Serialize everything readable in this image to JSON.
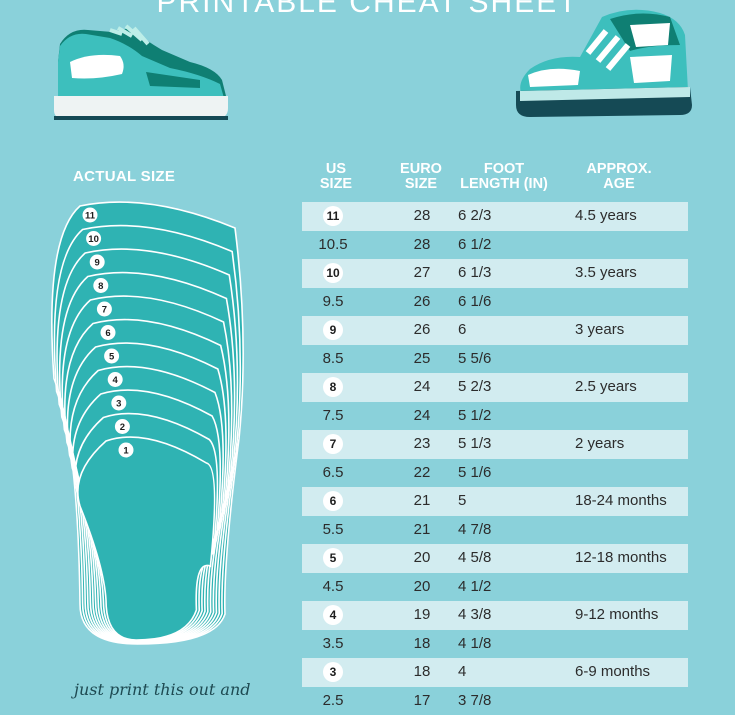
{
  "page": {
    "title": "PRINTABLE CHEAT SHEET",
    "actual_size_label": "ACTUAL SIZE",
    "handwritten_note": "just print this out and"
  },
  "table": {
    "headers": {
      "us": [
        "US",
        "SIZE"
      ],
      "euro": [
        "EURO",
        "SIZE"
      ],
      "foot": [
        "FOOT",
        "LENGTH (IN)"
      ],
      "age": [
        "APPROX.",
        "AGE"
      ]
    },
    "rows": [
      {
        "us": "11",
        "euro": "28",
        "foot": "6 2/3",
        "age": "4.5 years",
        "whole": true
      },
      {
        "us": "10.5",
        "euro": "28",
        "foot": "6 1/2",
        "age": "",
        "whole": false
      },
      {
        "us": "10",
        "euro": "27",
        "foot": "6 1/3",
        "age": "3.5 years",
        "whole": true
      },
      {
        "us": "9.5",
        "euro": "26",
        "foot": "6 1/6",
        "age": "",
        "whole": false
      },
      {
        "us": "9",
        "euro": "26",
        "foot": "6",
        "age": "3 years",
        "whole": true
      },
      {
        "us": "8.5",
        "euro": "25",
        "foot": "5 5/6",
        "age": "",
        "whole": false
      },
      {
        "us": "8",
        "euro": "24",
        "foot": "5 2/3",
        "age": "2.5 years",
        "whole": true
      },
      {
        "us": "7.5",
        "euro": "24",
        "foot": "5 1/2",
        "age": "",
        "whole": false
      },
      {
        "us": "7",
        "euro": "23",
        "foot": "5 1/3",
        "age": "2 years",
        "whole": true
      },
      {
        "us": "6.5",
        "euro": "22",
        "foot": "5 1/6",
        "age": "",
        "whole": false
      },
      {
        "us": "6",
        "euro": "21",
        "foot": "5",
        "age": "18-24 months",
        "whole": true
      },
      {
        "us": "5.5",
        "euro": "21",
        "foot": "4 7/8",
        "age": "",
        "whole": false
      },
      {
        "us": "5",
        "euro": "20",
        "foot": "4 5/8",
        "age": "12-18 months",
        "whole": true
      },
      {
        "us": "4.5",
        "euro": "20",
        "foot": "4 1/2",
        "age": "",
        "whole": false
      },
      {
        "us": "4",
        "euro": "19",
        "foot": "4 3/8",
        "age": "9-12 months",
        "whole": true
      },
      {
        "us": "3.5",
        "euro": "18",
        "foot": "4 1/8",
        "age": "",
        "whole": false
      },
      {
        "us": "3",
        "euro": "18",
        "foot": "4",
        "age": "6-9 months",
        "whole": true
      },
      {
        "us": "2.5",
        "euro": "17",
        "foot": "3 7/8",
        "age": "",
        "whole": false
      }
    ]
  },
  "insole_sizes": [
    "11",
    "10",
    "9",
    "8",
    "7",
    "6",
    "5",
    "4",
    "3",
    "2",
    "1"
  ],
  "colors": {
    "background": "#8ad1da",
    "teal": "#2fb3b3",
    "stripe": "#d2ecf0",
    "dark_teal": "#0f7f73",
    "navy": "#154a55"
  },
  "icons": [
    "sneaker-low-icon",
    "sneaker-high-icon"
  ]
}
